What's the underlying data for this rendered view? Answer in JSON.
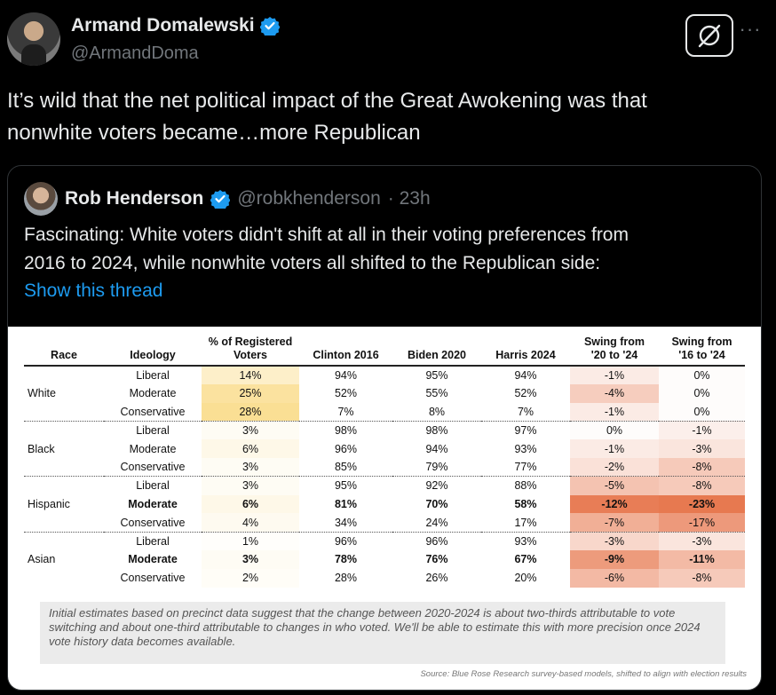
{
  "tweet": {
    "author": {
      "display_name": "Armand Domalewski",
      "handle": "@ArmandDoma"
    },
    "text_line1": "It’s wild that the net political impact of the Great Awokening was that",
    "text_line2": "nonwhite voters became…more Republican"
  },
  "quote": {
    "author": {
      "display_name": "Rob Henderson",
      "handle": "@robkhenderson",
      "time": "· 23h"
    },
    "text_line1": "Fascinating: White voters didn't shift at all in their voting preferences from",
    "text_line2": "2016 to 2024, while nonwhite voters all shifted to the Republican side:",
    "show_thread": "Show this thread"
  },
  "colors": {
    "accent": "#1d9bf0",
    "verified": "#1d9bf0",
    "muted": "#71767b"
  },
  "icons": {
    "verified": "verified-badge-icon",
    "grok": "grok-icon",
    "more": "more-dots-icon"
  },
  "chart_data": {
    "type": "table",
    "headers": [
      "Race",
      "Ideology",
      "% of Registered Voters",
      "Clinton 2016",
      "Biden 2020",
      "Harris 2024",
      "Swing from '20 to '24",
      "Swing from '16 to '24"
    ],
    "header_lines": {
      "pct_1": "% of Registered",
      "pct_2": "Voters",
      "swing20_1": "Swing from",
      "swing20_2": "'20 to '24",
      "swing16_1": "Swing from",
      "swing16_2": "'16 to '24"
    },
    "rows": [
      {
        "race": "",
        "ideology": "Liberal",
        "pct": "14%",
        "clinton": "94%",
        "biden": "95%",
        "harris": "94%",
        "swing20": "-1%",
        "swing16": "0%",
        "bold": false
      },
      {
        "race": "White",
        "ideology": "Moderate",
        "pct": "25%",
        "clinton": "52%",
        "biden": "55%",
        "harris": "52%",
        "swing20": "-4%",
        "swing16": "0%",
        "bold": false
      },
      {
        "race": "",
        "ideology": "Conservative",
        "pct": "28%",
        "clinton": "7%",
        "biden": "8%",
        "harris": "7%",
        "swing20": "-1%",
        "swing16": "0%",
        "bold": false
      },
      {
        "race": "",
        "ideology": "Liberal",
        "pct": "3%",
        "clinton": "98%",
        "biden": "98%",
        "harris": "97%",
        "swing20": "0%",
        "swing16": "-1%",
        "bold": false
      },
      {
        "race": "Black",
        "ideology": "Moderate",
        "pct": "6%",
        "clinton": "96%",
        "biden": "94%",
        "harris": "93%",
        "swing20": "-1%",
        "swing16": "-3%",
        "bold": false
      },
      {
        "race": "",
        "ideology": "Conservative",
        "pct": "3%",
        "clinton": "85%",
        "biden": "79%",
        "harris": "77%",
        "swing20": "-2%",
        "swing16": "-8%",
        "bold": false
      },
      {
        "race": "",
        "ideology": "Liberal",
        "pct": "3%",
        "clinton": "95%",
        "biden": "92%",
        "harris": "88%",
        "swing20": "-5%",
        "swing16": "-8%",
        "bold": false
      },
      {
        "race": "Hispanic",
        "ideology": "Moderate",
        "pct": "6%",
        "clinton": "81%",
        "biden": "70%",
        "harris": "58%",
        "swing20": "-12%",
        "swing16": "-23%",
        "bold": true
      },
      {
        "race": "",
        "ideology": "Conservative",
        "pct": "4%",
        "clinton": "34%",
        "biden": "24%",
        "harris": "17%",
        "swing20": "-7%",
        "swing16": "-17%",
        "bold": false
      },
      {
        "race": "",
        "ideology": "Liberal",
        "pct": "1%",
        "clinton": "96%",
        "biden": "96%",
        "harris": "93%",
        "swing20": "-3%",
        "swing16": "-3%",
        "bold": false
      },
      {
        "race": "Asian",
        "ideology": "Moderate",
        "pct": "3%",
        "clinton": "78%",
        "biden": "76%",
        "harris": "67%",
        "swing20": "-9%",
        "swing16": "-11%",
        "bold": true
      },
      {
        "race": "",
        "ideology": "Conservative",
        "pct": "2%",
        "clinton": "28%",
        "biden": "26%",
        "harris": "20%",
        "swing20": "-6%",
        "swing16": "-8%",
        "bold": false
      }
    ],
    "note": "Initial estimates based on precinct data suggest that the change between 2020-2024 is about two-thirds attributable to vote switching and about one-third attributable to changes in who voted. We'll be able to estimate this with more precision once 2024 vote history data becomes available.",
    "source": "Source: Blue Rose Research survey-based models, shifted to align with election results"
  }
}
